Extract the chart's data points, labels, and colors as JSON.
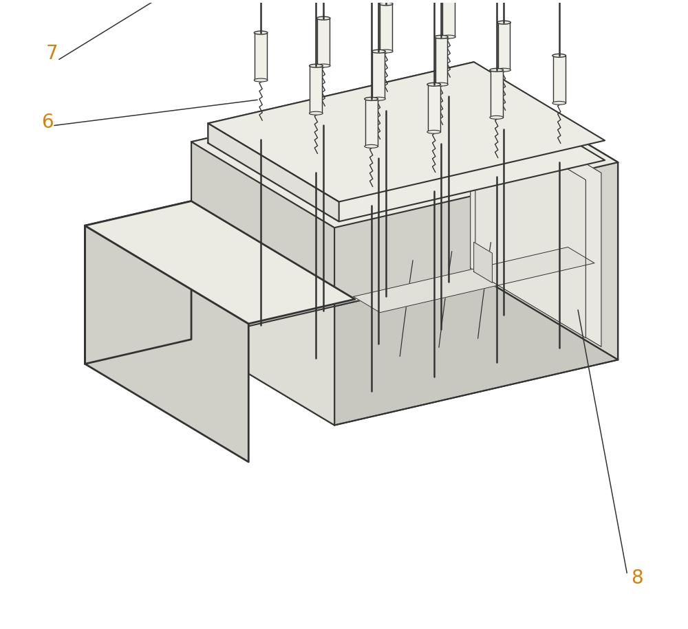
{
  "bg_color": "#ffffff",
  "line_color": "#333333",
  "label_color": "#d4820a",
  "lw_main": 1.5,
  "lw_thick": 2.0,
  "lw_thin": 0.9,
  "fig_width": 10.0,
  "fig_height": 9.15,
  "label_fontsize": 20
}
